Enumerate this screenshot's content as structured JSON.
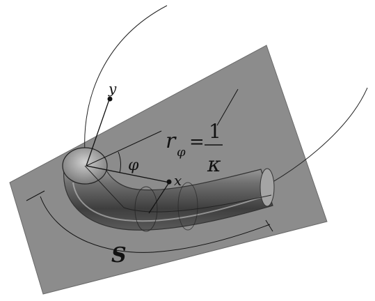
{
  "labels": {
    "y_axis": "y",
    "x_axis": "x",
    "angle": "φ",
    "radius_symbol": "r",
    "radius_subscript": "φ",
    "equals": "=",
    "numerator": "1",
    "denominator": "κ",
    "arc_length": "S"
  },
  "colors": {
    "plane": "#8c8c8c",
    "tube_dark": "#444444",
    "tube_light": "#9a9a9a",
    "lines": "#111111"
  }
}
